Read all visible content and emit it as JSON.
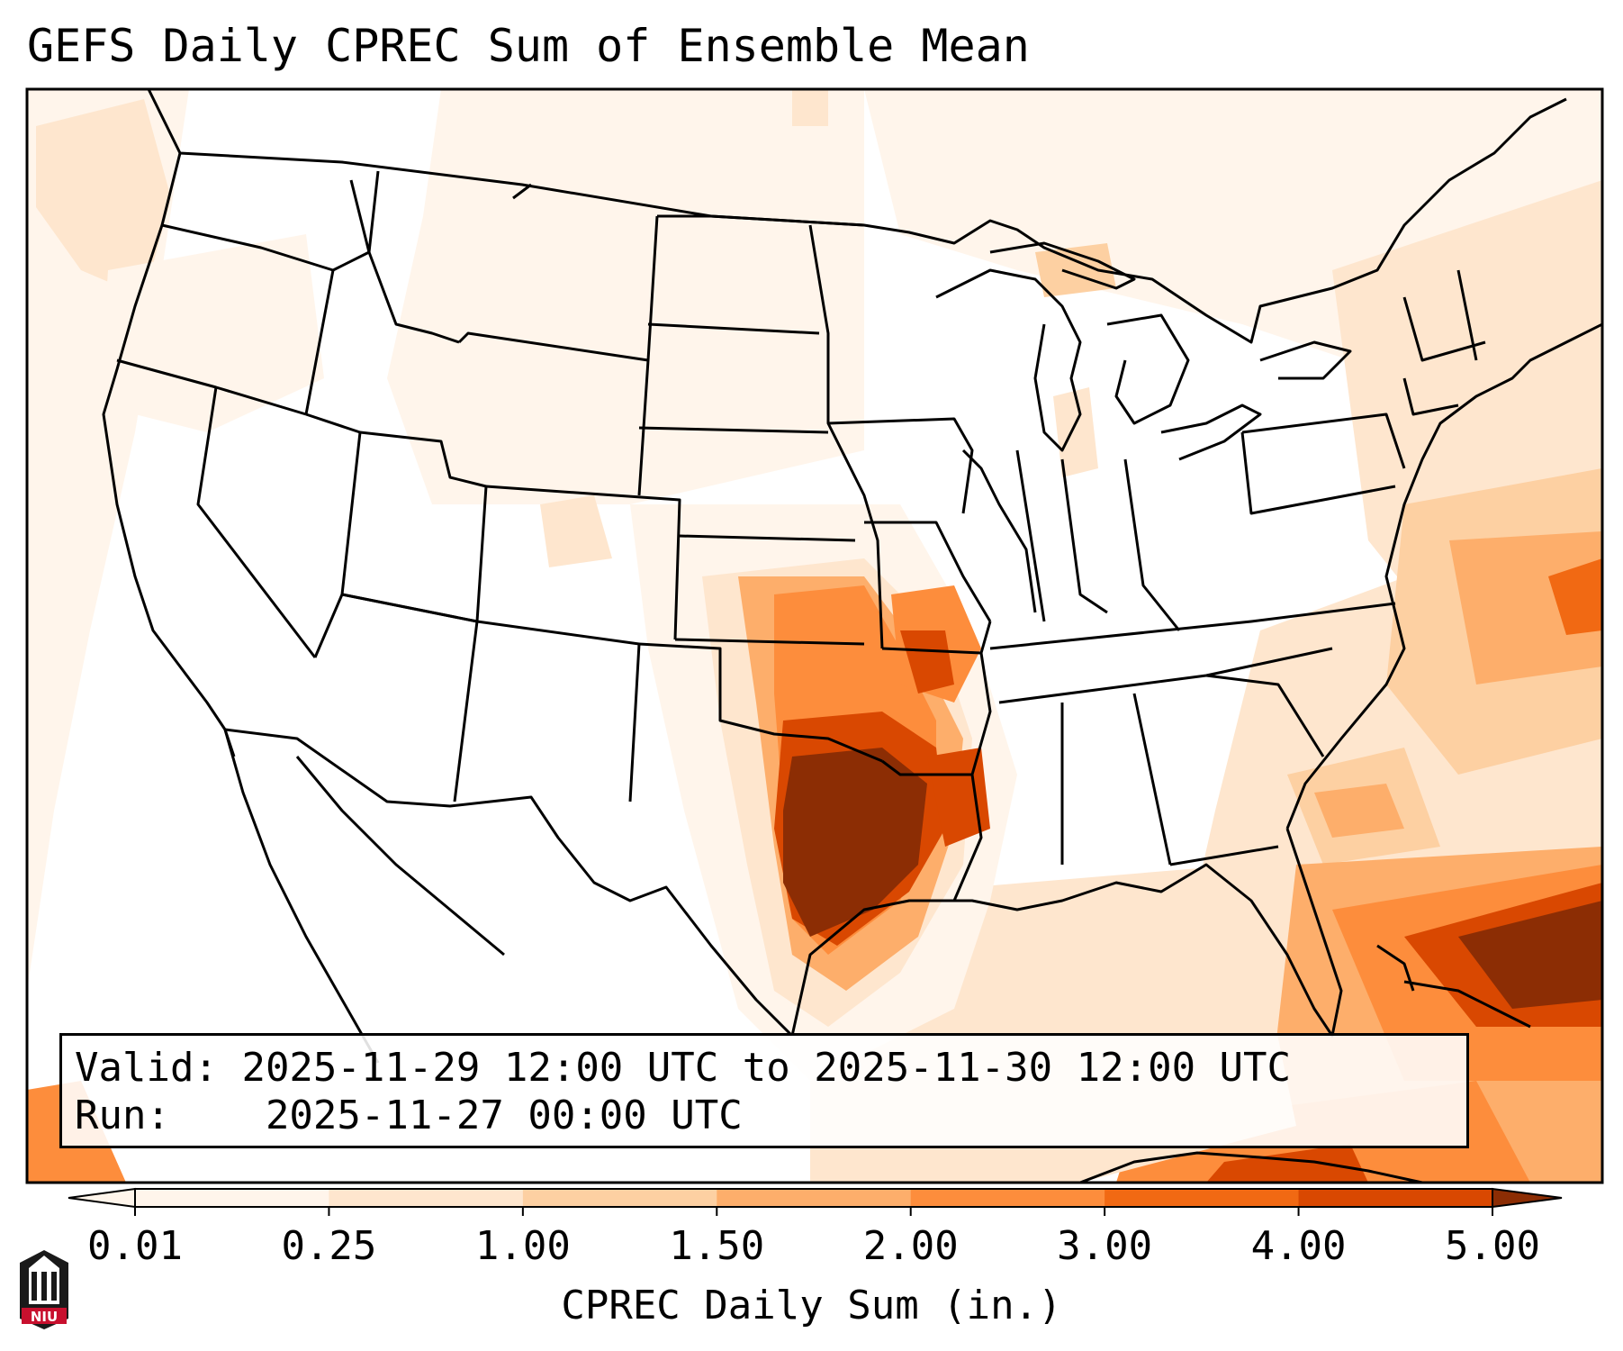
{
  "title": "GEFS Daily CPREC Sum of Ensemble Mean",
  "info": {
    "valid_label": "Valid:",
    "valid_value": "2025-11-29 12:00 UTC to 2025-11-30 12:00 UTC",
    "run_label": "Run:",
    "run_value": "2025-11-27 00:00 UTC"
  },
  "colorbar": {
    "label": "CPREC Daily Sum (in.)",
    "ticks": [
      "0.01",
      "0.25",
      "1.00",
      "1.50",
      "2.00",
      "3.00",
      "4.00",
      "5.00"
    ],
    "colors": [
      "#fff5eb",
      "#fee6ce",
      "#fdd0a2",
      "#fdae6b",
      "#fd8d3c",
      "#f16913",
      "#d94801",
      "#8c2d04"
    ],
    "extend": "both"
  },
  "logo": {
    "text": "NIU",
    "colors": {
      "red": "#c8102e",
      "black": "#1a1a1a"
    }
  },
  "colors": {
    "outline": "#000000",
    "background": "#ffffff"
  }
}
